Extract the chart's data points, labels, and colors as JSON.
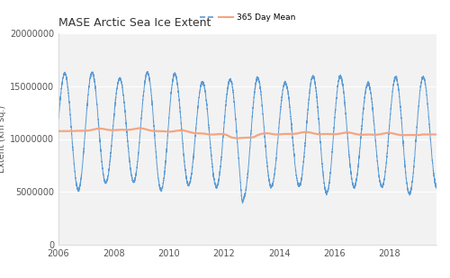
{
  "title": "MASE Arctic Sea Ice Extent",
  "ylabel": "Extent (km sq.)",
  "ylim": [
    0,
    20000000
  ],
  "xlim_start": 2006.0,
  "xlim_end": 2019.7,
  "yticks": [
    0,
    5000000,
    10000000,
    15000000,
    20000000
  ],
  "xtick_years": [
    2006,
    2008,
    2010,
    2012,
    2014,
    2016,
    2018
  ],
  "blue_color": "#5B9BD5",
  "red_color": "#F4A582",
  "fig_bg_color": "#FFFFFF",
  "plot_bg_color": "#F2F2F2",
  "grid_color": "#FFFFFF",
  "title_fontsize": 9,
  "legend_label_red": "365 Day Mean",
  "axis_label_fontsize": 7,
  "tick_fontsize": 7
}
